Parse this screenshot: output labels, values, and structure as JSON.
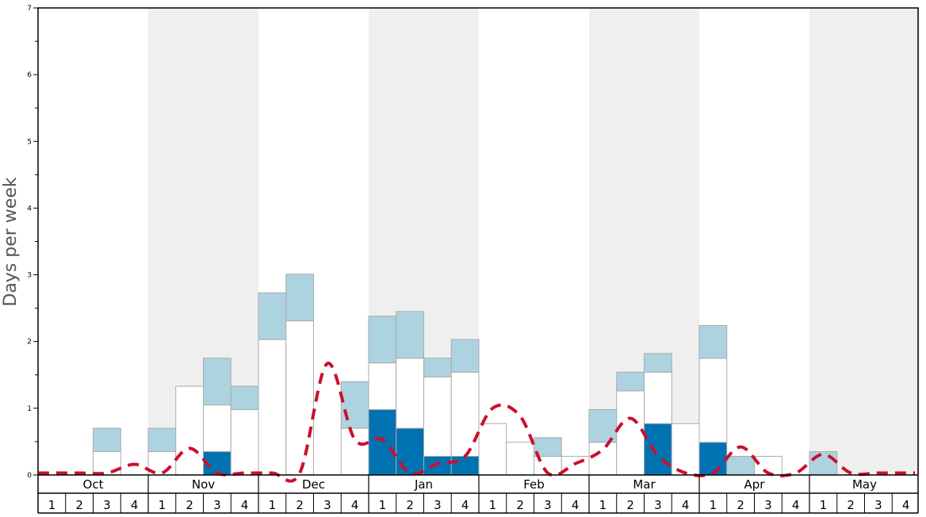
{
  "chart_data": {
    "type": "bar",
    "ylabel": "Days per week",
    "ylim": [
      0,
      7
    ],
    "y_ticks": [
      "0",
      "1",
      "2",
      "3",
      "4",
      "5",
      "6",
      "7"
    ],
    "months": [
      "Oct",
      "Nov",
      "Dec",
      "Jan",
      "Feb",
      "Mar",
      "Apr",
      "May"
    ],
    "weeks": [
      "1",
      "2",
      "3",
      "4"
    ],
    "colors": {
      "dark": "#0072b2",
      "white": "#ffffff",
      "light": "#aed3e0",
      "line": "#cc0f2e",
      "shade": "#efefef"
    },
    "series": [
      {
        "values": [
          0,
          0,
          0,
          0,
          0,
          0,
          0.35,
          0,
          0,
          0,
          0,
          0,
          0.98,
          0.7,
          0.28,
          0.28,
          0,
          0,
          0,
          0,
          0,
          0,
          0.77,
          0,
          0.49,
          0,
          0,
          0,
          0,
          0,
          0,
          0
        ]
      },
      {
        "values": [
          0,
          0,
          0.35,
          0,
          0.35,
          1.33,
          0.7,
          0.98,
          2.03,
          2.31,
          0,
          0.7,
          0.7,
          1.05,
          1.19,
          1.26,
          0.77,
          0.49,
          0.28,
          0.28,
          0.49,
          1.26,
          0.77,
          0.77,
          1.26,
          0,
          0.28,
          0,
          0,
          0,
          0,
          0
        ]
      },
      {
        "values": [
          0,
          0,
          0.35,
          0,
          0.35,
          0,
          0.7,
          0.35,
          0.7,
          0.7,
          0,
          0.7,
          0.7,
          0.7,
          0.28,
          0.49,
          0,
          0,
          0.28,
          0,
          0.49,
          0.28,
          0.28,
          0,
          0.49,
          0.28,
          0,
          0,
          0.35,
          0,
          0,
          0
        ]
      },
      {
        "type": "line",
        "values": [
          0.03,
          0.03,
          0.03,
          0.16,
          0.03,
          0.4,
          0.03,
          0.03,
          0.03,
          0.03,
          1.67,
          0.53,
          0.53,
          0.03,
          0.17,
          0.28,
          1.0,
          0.88,
          0.03,
          0.17,
          0.38,
          0.85,
          0.29,
          0.03,
          0.03,
          0.42,
          0.03,
          0.03,
          0.31,
          0.03,
          0.03,
          0.03
        ]
      }
    ]
  }
}
